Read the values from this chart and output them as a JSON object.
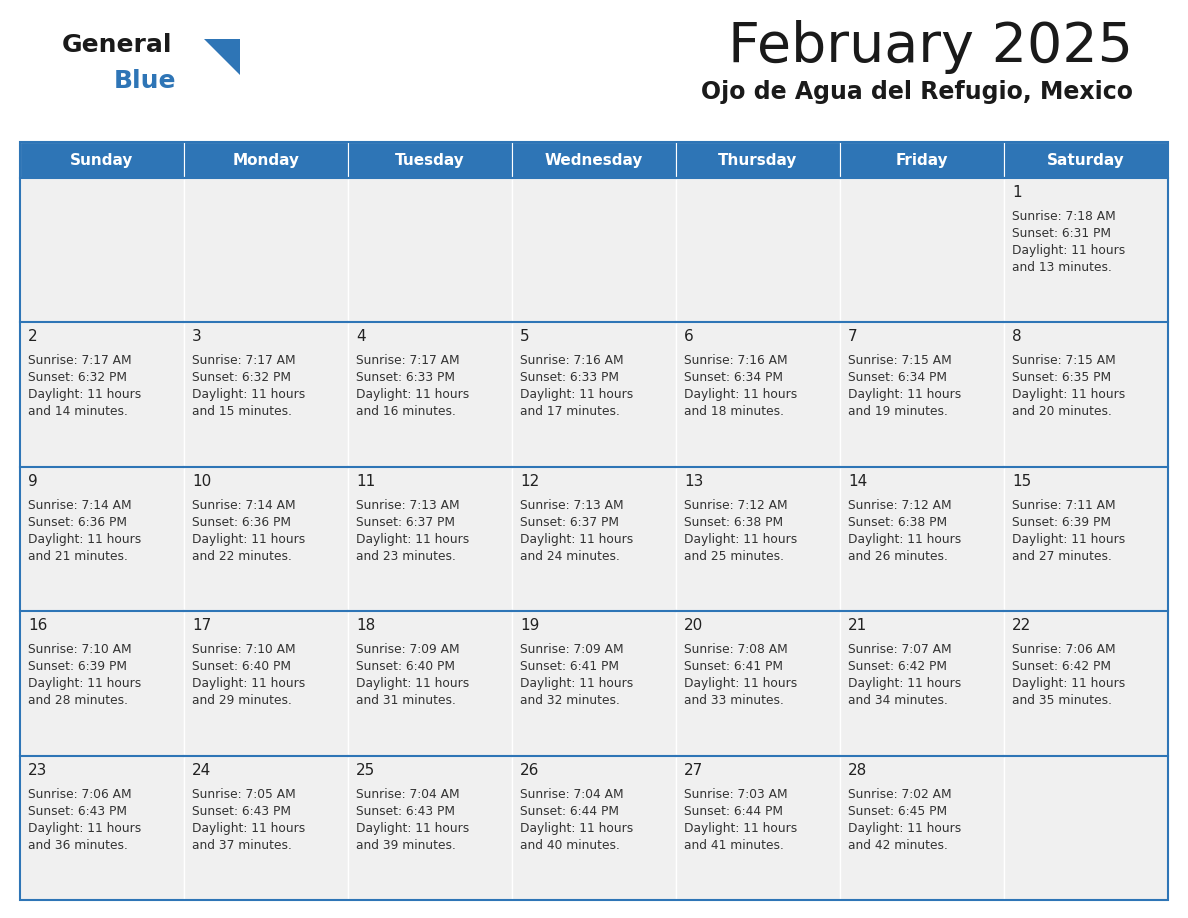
{
  "title": "February 2025",
  "subtitle": "Ojo de Agua del Refugio, Mexico",
  "days_of_week": [
    "Sunday",
    "Monday",
    "Tuesday",
    "Wednesday",
    "Thursday",
    "Friday",
    "Saturday"
  ],
  "header_bg": "#2E75B6",
  "header_text": "#FFFFFF",
  "cell_bg": "#F0F0F0",
  "border_color": "#2E75B6",
  "day_number_color": "#222222",
  "text_color": "#333333",
  "title_color": "#1A1A1A",
  "subtitle_color": "#1A1A1A",
  "logo_general_color": "#1A1A1A",
  "logo_blue_color": "#2E75B6",
  "logo_triangle_color": "#2E75B6",
  "calendar_data": [
    [
      null,
      null,
      null,
      null,
      null,
      null,
      {
        "day": 1,
        "sunrise": "7:18 AM",
        "sunset": "6:31 PM",
        "daylight": "11 hours and 13 minutes."
      }
    ],
    [
      {
        "day": 2,
        "sunrise": "7:17 AM",
        "sunset": "6:32 PM",
        "daylight": "11 hours and 14 minutes."
      },
      {
        "day": 3,
        "sunrise": "7:17 AM",
        "sunset": "6:32 PM",
        "daylight": "11 hours and 15 minutes."
      },
      {
        "day": 4,
        "sunrise": "7:17 AM",
        "sunset": "6:33 PM",
        "daylight": "11 hours and 16 minutes."
      },
      {
        "day": 5,
        "sunrise": "7:16 AM",
        "sunset": "6:33 PM",
        "daylight": "11 hours and 17 minutes."
      },
      {
        "day": 6,
        "sunrise": "7:16 AM",
        "sunset": "6:34 PM",
        "daylight": "11 hours and 18 minutes."
      },
      {
        "day": 7,
        "sunrise": "7:15 AM",
        "sunset": "6:34 PM",
        "daylight": "11 hours and 19 minutes."
      },
      {
        "day": 8,
        "sunrise": "7:15 AM",
        "sunset": "6:35 PM",
        "daylight": "11 hours and 20 minutes."
      }
    ],
    [
      {
        "day": 9,
        "sunrise": "7:14 AM",
        "sunset": "6:36 PM",
        "daylight": "11 hours and 21 minutes."
      },
      {
        "day": 10,
        "sunrise": "7:14 AM",
        "sunset": "6:36 PM",
        "daylight": "11 hours and 22 minutes."
      },
      {
        "day": 11,
        "sunrise": "7:13 AM",
        "sunset": "6:37 PM",
        "daylight": "11 hours and 23 minutes."
      },
      {
        "day": 12,
        "sunrise": "7:13 AM",
        "sunset": "6:37 PM",
        "daylight": "11 hours and 24 minutes."
      },
      {
        "day": 13,
        "sunrise": "7:12 AM",
        "sunset": "6:38 PM",
        "daylight": "11 hours and 25 minutes."
      },
      {
        "day": 14,
        "sunrise": "7:12 AM",
        "sunset": "6:38 PM",
        "daylight": "11 hours and 26 minutes."
      },
      {
        "day": 15,
        "sunrise": "7:11 AM",
        "sunset": "6:39 PM",
        "daylight": "11 hours and 27 minutes."
      }
    ],
    [
      {
        "day": 16,
        "sunrise": "7:10 AM",
        "sunset": "6:39 PM",
        "daylight": "11 hours and 28 minutes."
      },
      {
        "day": 17,
        "sunrise": "7:10 AM",
        "sunset": "6:40 PM",
        "daylight": "11 hours and 29 minutes."
      },
      {
        "day": 18,
        "sunrise": "7:09 AM",
        "sunset": "6:40 PM",
        "daylight": "11 hours and 31 minutes."
      },
      {
        "day": 19,
        "sunrise": "7:09 AM",
        "sunset": "6:41 PM",
        "daylight": "11 hours and 32 minutes."
      },
      {
        "day": 20,
        "sunrise": "7:08 AM",
        "sunset": "6:41 PM",
        "daylight": "11 hours and 33 minutes."
      },
      {
        "day": 21,
        "sunrise": "7:07 AM",
        "sunset": "6:42 PM",
        "daylight": "11 hours and 34 minutes."
      },
      {
        "day": 22,
        "sunrise": "7:06 AM",
        "sunset": "6:42 PM",
        "daylight": "11 hours and 35 minutes."
      }
    ],
    [
      {
        "day": 23,
        "sunrise": "7:06 AM",
        "sunset": "6:43 PM",
        "daylight": "11 hours and 36 minutes."
      },
      {
        "day": 24,
        "sunrise": "7:05 AM",
        "sunset": "6:43 PM",
        "daylight": "11 hours and 37 minutes."
      },
      {
        "day": 25,
        "sunrise": "7:04 AM",
        "sunset": "6:43 PM",
        "daylight": "11 hours and 39 minutes."
      },
      {
        "day": 26,
        "sunrise": "7:04 AM",
        "sunset": "6:44 PM",
        "daylight": "11 hours and 40 minutes."
      },
      {
        "day": 27,
        "sunrise": "7:03 AM",
        "sunset": "6:44 PM",
        "daylight": "11 hours and 41 minutes."
      },
      {
        "day": 28,
        "sunrise": "7:02 AM",
        "sunset": "6:45 PM",
        "daylight": "11 hours and 42 minutes."
      },
      null
    ]
  ],
  "figsize": [
    11.88,
    9.18
  ],
  "dpi": 100
}
